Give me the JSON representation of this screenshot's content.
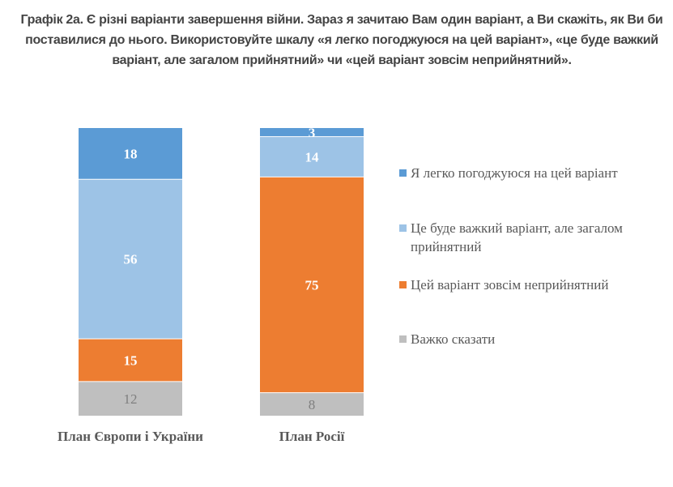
{
  "title": "Графік 2а. Є різні варіанти завершення війни. Зараз я зачитаю Вам один варіант, а Ви скажіть, як Ви би поставилися до нього. Використовуйте шкалу «я легко погоджуюся на цей варіант», «це буде важкий варіант, але загалом прийнятний» чи «цей варіант зовсім неприйнятний».",
  "chart_data": {
    "type": "bar",
    "stacked": true,
    "title": "Графік 2а. Є різні варіанти завершення війни. Зараз я зачитаю Вам один варіант, а Ви скажіть, як Ви би поставилися до нього. Використовуйте шкалу «я легко погоджуюся на цей варіант», «це буде важкий варіант, але загалом прийнятний» чи «цей варіант зовсім неприйнятний».",
    "xlabel": "",
    "ylabel": "",
    "grid": false,
    "legend_position": "right",
    "categories": [
      "План Європи і України",
      "План Росії"
    ],
    "series": [
      {
        "name": "Я легко погоджуюся на цей варіант",
        "color": "#5b9bd5",
        "values": [
          18,
          3
        ],
        "label_color": "#ffffff"
      },
      {
        "name": "Це буде важкий варіант, але загалом прийнятний",
        "color": "#9dc3e6",
        "values": [
          56,
          14
        ],
        "label_color": "#ffffff"
      },
      {
        "name": "Цей варіант зовсім неприйнятний",
        "color": "#ed7d31",
        "values": [
          15,
          75
        ],
        "label_color": "#ffffff"
      },
      {
        "name": "Важко сказати",
        "color": "#bfbfbf",
        "values": [
          12,
          8
        ],
        "label_color": "#7f7f7f"
      }
    ]
  }
}
